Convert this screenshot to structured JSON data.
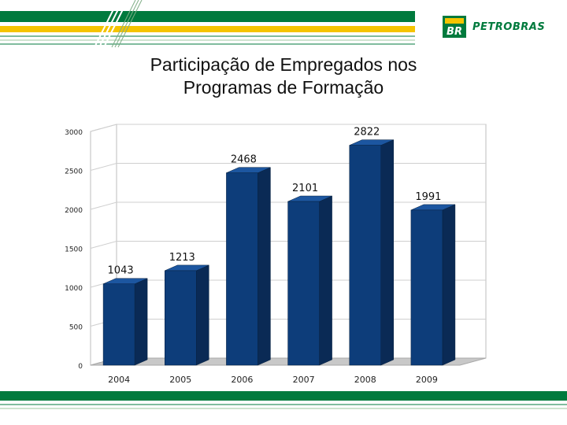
{
  "slide": {
    "title_line1": "Participação de Empregados nos",
    "title_line2": "Programas de Formação",
    "brand": {
      "logo_text": "BR",
      "name": "PETROBRAS",
      "green": "#007a3d",
      "yellow": "#f5c400"
    }
  },
  "colors": {
    "bar_front": "#0d3d7a",
    "bar_side": "#0a2a55",
    "bar_top": "#1c56a0",
    "floor": "#c8c8c8",
    "grid": "#cfcfcf"
  },
  "chart_data": {
    "type": "bar",
    "categories": [
      "2004",
      "2005",
      "2006",
      "2007",
      "2008",
      "2009"
    ],
    "values": [
      1043,
      1213,
      2468,
      2101,
      2822,
      1991
    ],
    "ylim": [
      0,
      3000
    ],
    "yticks": [
      0,
      500,
      1000,
      1500,
      2000,
      2500,
      3000
    ],
    "grid": true,
    "legend": "none",
    "title": "",
    "xlabel": "",
    "ylabel": ""
  }
}
